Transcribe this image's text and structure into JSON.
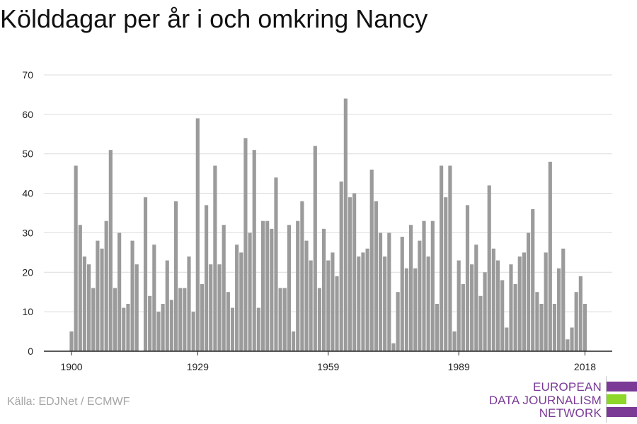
{
  "title": "Kölddagar per år i och omkring Nancy",
  "source": "Källa: EDJNet / ECMWF",
  "logo": {
    "lines": [
      "EUROPEAN",
      "DATA JOURNALISM",
      "NETWORK"
    ],
    "text_color": "#7a3a96",
    "bar_colors": [
      "#7a3a96",
      "#8ed629",
      "#7a3a96"
    ]
  },
  "colors": {
    "bar": "#9b9b9b",
    "grid": "#dcdcdc",
    "axis": "#222222",
    "tick_text": "#222222",
    "title": "#111111",
    "source": "#a6a6a6"
  },
  "chart_data": {
    "type": "bar",
    "title": "Kölddagar per år i och omkring Nancy",
    "xlabel": "",
    "ylabel": "",
    "ylim": [
      0,
      70
    ],
    "yticks": [
      0,
      10,
      20,
      30,
      40,
      50,
      60,
      70
    ],
    "xticks": [
      1900,
      1929,
      1959,
      1989,
      2018
    ],
    "grid": true,
    "x": [
      1900,
      1901,
      1902,
      1903,
      1904,
      1905,
      1906,
      1907,
      1908,
      1909,
      1910,
      1911,
      1912,
      1913,
      1914,
      1915,
      1916,
      1917,
      1918,
      1919,
      1920,
      1921,
      1922,
      1923,
      1924,
      1925,
      1926,
      1927,
      1928,
      1929,
      1930,
      1931,
      1932,
      1933,
      1934,
      1935,
      1936,
      1937,
      1938,
      1939,
      1940,
      1941,
      1942,
      1943,
      1944,
      1945,
      1946,
      1947,
      1948,
      1949,
      1950,
      1951,
      1952,
      1953,
      1954,
      1955,
      1956,
      1957,
      1958,
      1959,
      1960,
      1961,
      1962,
      1963,
      1964,
      1965,
      1966,
      1967,
      1968,
      1969,
      1970,
      1971,
      1972,
      1973,
      1974,
      1975,
      1976,
      1977,
      1978,
      1979,
      1980,
      1981,
      1982,
      1983,
      1984,
      1985,
      1986,
      1987,
      1988,
      1989,
      1990,
      1991,
      1992,
      1993,
      1994,
      1995,
      1996,
      1997,
      1998,
      1999,
      2000,
      2001,
      2002,
      2003,
      2004,
      2005,
      2006,
      2007,
      2008,
      2009,
      2010,
      2011,
      2012,
      2013,
      2014,
      2015,
      2016,
      2017,
      2018
    ],
    "values": [
      5,
      47,
      32,
      24,
      22,
      16,
      28,
      26,
      33,
      51,
      16,
      30,
      11,
      12,
      28,
      22,
      0,
      39,
      14,
      27,
      10,
      12,
      23,
      13,
      38,
      16,
      16,
      24,
      10,
      59,
      17,
      37,
      22,
      47,
      22,
      32,
      15,
      11,
      27,
      25,
      54,
      30,
      51,
      11,
      33,
      33,
      31,
      44,
      16,
      16,
      32,
      5,
      33,
      38,
      28,
      23,
      52,
      16,
      31,
      23,
      25,
      19,
      43,
      64,
      39,
      40,
      24,
      25,
      26,
      46,
      38,
      30,
      24,
      30,
      2,
      15,
      29,
      21,
      32,
      21,
      28,
      33,
      24,
      33,
      12,
      47,
      39,
      47,
      5,
      23,
      17,
      37,
      22,
      27,
      14,
      20,
      42,
      26,
      23,
      18,
      6,
      22,
      17,
      24,
      25,
      30,
      36,
      15,
      12,
      25,
      48,
      12,
      21,
      26,
      3,
      6,
      15,
      19,
      12
    ]
  }
}
